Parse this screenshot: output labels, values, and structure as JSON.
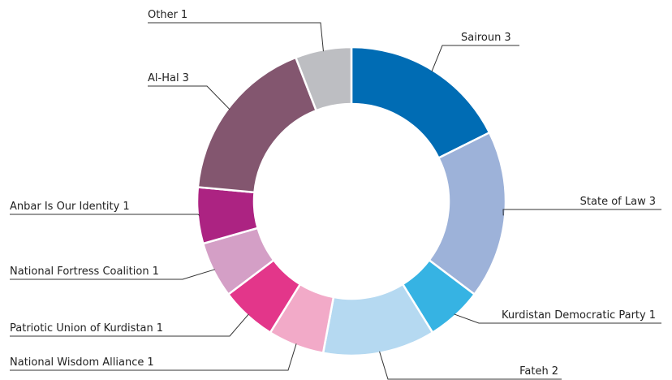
{
  "chart_data": {
    "type": "donut",
    "categories": [
      "Sairoun",
      "State of Law",
      "Kurdistan Democratic Party",
      "Fateh",
      "National Wisdom Alliance",
      "Patriotic Union of Kurdistan",
      "National Fortress Coalition",
      "Anbar Is Our Identity",
      "Al-Hal",
      "Other"
    ],
    "values": [
      3,
      3,
      1,
      2,
      1,
      1,
      1,
      1,
      3,
      1
    ],
    "colors": [
      "#006cb4",
      "#9db2d9",
      "#36b3e3",
      "#b5d9f1",
      "#f2aac8",
      "#e3368a",
      "#d49fc6",
      "#ac2382",
      "#83566f",
      "#bdbec2"
    ]
  }
}
